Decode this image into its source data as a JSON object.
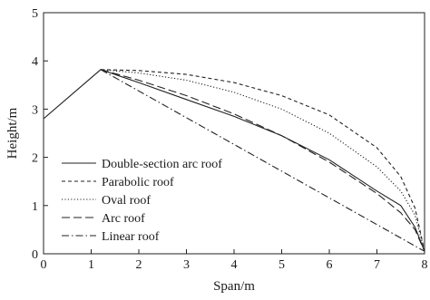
{
  "chart_data": {
    "type": "line",
    "title": "",
    "xlabel": "Span/m",
    "ylabel": "Height/m",
    "xlim": [
      0,
      8
    ],
    "ylim": [
      0,
      5
    ],
    "x_ticks": [
      0,
      1,
      2,
      3,
      4,
      5,
      6,
      7,
      8
    ],
    "y_ticks": [
      0,
      1,
      2,
      3,
      4,
      5
    ],
    "grid": false,
    "legend_position": "bottom-left",
    "series": [
      {
        "name": "Double-section arc roof",
        "style": "solid",
        "x": [
          0,
          1.2,
          2.0,
          3.0,
          4.0,
          5.0,
          6.0,
          7.0,
          7.5,
          7.8,
          8.0
        ],
        "y": [
          2.8,
          3.82,
          3.55,
          3.2,
          2.85,
          2.45,
          1.95,
          1.3,
          1.0,
          0.55,
          0.05
        ]
      },
      {
        "name": "Parabolic roof",
        "style": "dashed",
        "x": [
          1.2,
          2.0,
          3.0,
          4.0,
          5.0,
          6.0,
          7.0,
          7.5,
          7.8,
          8.0
        ],
        "y": [
          3.82,
          3.8,
          3.72,
          3.55,
          3.28,
          2.88,
          2.2,
          1.6,
          0.95,
          0.05
        ]
      },
      {
        "name": "Oval roof",
        "style": "dotted",
        "x": [
          1.2,
          2.0,
          3.0,
          4.0,
          5.0,
          6.0,
          7.0,
          7.5,
          7.8,
          8.0
        ],
        "y": [
          3.82,
          3.75,
          3.6,
          3.35,
          3.0,
          2.5,
          1.8,
          1.3,
          0.8,
          0.05
        ]
      },
      {
        "name": "Arc roof",
        "style": "long-dash",
        "x": [
          1.2,
          2.0,
          3.0,
          4.0,
          5.0,
          6.0,
          7.0,
          7.5,
          7.8,
          8.0
        ],
        "y": [
          3.82,
          3.6,
          3.28,
          2.9,
          2.45,
          1.9,
          1.25,
          0.85,
          0.5,
          0.05
        ]
      },
      {
        "name": "Linear roof",
        "style": "dash-dot",
        "x": [
          1.2,
          8.0
        ],
        "y": [
          3.82,
          0.05
        ]
      }
    ]
  }
}
